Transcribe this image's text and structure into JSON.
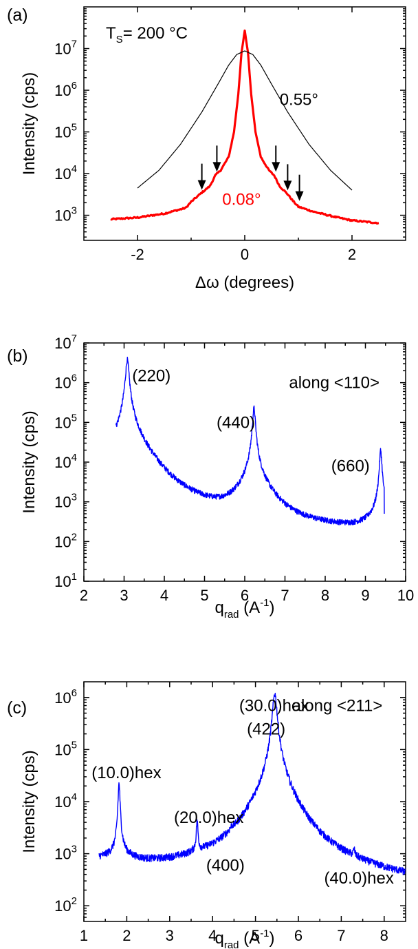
{
  "chart_data": [
    {
      "type": "line",
      "panel_label": "(a)",
      "xlabel": "Δω (degrees)",
      "ylabel": "Intensity (cps)",
      "yscale": "log",
      "xlim": [
        -3,
        3
      ],
      "ylim": [
        250,
        100000000
      ],
      "x_ticks": [
        -2,
        0,
        2
      ],
      "x_tick_labels": [
        "-2",
        "0",
        "2"
      ],
      "y_ticks": [
        1000,
        10000,
        100000,
        1000000,
        10000000
      ],
      "y_tick_labels": [
        {
          "base": "10",
          "exp": "3"
        },
        {
          "base": "10",
          "exp": "4"
        },
        {
          "base": "10",
          "exp": "5"
        },
        {
          "base": "10",
          "exp": "6"
        },
        {
          "base": "10",
          "exp": "7"
        }
      ],
      "series": [
        {
          "color": "#ff0000",
          "width": "thick",
          "x": [
            -2.5,
            -2.0,
            -1.5,
            -1.1,
            -1.0,
            -0.8,
            -0.65,
            -0.55,
            -0.45,
            -0.3,
            -0.2,
            -0.12,
            -0.06,
            0.0,
            0.06,
            0.12,
            0.2,
            0.3,
            0.45,
            0.55,
            0.65,
            0.8,
            0.9,
            1.0,
            1.3,
            1.7,
            2.0,
            2.5
          ],
          "y": [
            800,
            880,
            1100,
            1500,
            2100,
            3500,
            5000,
            9000,
            12000,
            25000,
            100000,
            800000,
            8000000,
            27000000,
            8000000,
            800000,
            100000,
            25000,
            12000,
            9000,
            5000,
            3200,
            2200,
            1600,
            1200,
            900,
            750,
            650
          ]
        },
        {
          "color": "#000000",
          "width": "thin",
          "x": [
            -2.0,
            -1.6,
            -1.2,
            -0.8,
            -0.5,
            -0.3,
            -0.15,
            0.0,
            0.15,
            0.3,
            0.5,
            0.8,
            1.2,
            1.6,
            2.0
          ],
          "y": [
            4500,
            12000,
            50000,
            300000,
            1400000,
            4000000,
            7200000,
            8800000,
            7200000,
            4000000,
            1400000,
            300000,
            50000,
            12000,
            4000
          ]
        }
      ],
      "arrows": [
        {
          "x": -0.8,
          "y": 3500
        },
        {
          "x": -0.52,
          "y": 9500
        },
        {
          "x": 0.58,
          "y": 9500
        },
        {
          "x": 0.8,
          "y": 3400
        },
        {
          "x": 1.02,
          "y": 1900
        }
      ],
      "annotations": [
        {
          "text": "0.55°",
          "x": 0.65,
          "y": 600000,
          "color": "#000000"
        },
        {
          "text": "0.08°",
          "x": -0.42,
          "y": 2400,
          "color": "#ff0000"
        }
      ],
      "ts_label": {
        "prefix": "T",
        "sub": "S",
        "rest": "= 200 °C"
      }
    },
    {
      "type": "line",
      "panel_label": "(b)",
      "xlabel_main": "q",
      "xlabel_sub": "rad",
      "xlabel_unit": " (A",
      "xlabel_sup": "-1",
      "xlabel_close": ")",
      "ylabel": "Intensity (cps)",
      "yscale": "log",
      "xlim": [
        2,
        10
      ],
      "ylim": [
        10,
        10000000
      ],
      "x_ticks": [
        2,
        3,
        4,
        5,
        6,
        7,
        8,
        9,
        10
      ],
      "x_tick_labels": [
        "2",
        "3",
        "4",
        "5",
        "6",
        "7",
        "8",
        "9",
        "10"
      ],
      "y_ticks": [
        10,
        100,
        1000,
        10000,
        100000,
        1000000,
        10000000
      ],
      "y_tick_labels": [
        {
          "base": "10",
          "exp": "1"
        },
        {
          "base": "10",
          "exp": "2"
        },
        {
          "base": "10",
          "exp": "3"
        },
        {
          "base": "10",
          "exp": "4"
        },
        {
          "base": "10",
          "exp": "5"
        },
        {
          "base": "10",
          "exp": "6"
        },
        {
          "base": "10",
          "exp": "7"
        }
      ],
      "background": {
        "x_start": 2.8,
        "x_end": 9.4,
        "level": 85
      },
      "peaks": [
        {
          "x": 3.08,
          "height": 3800000,
          "width": 0.035
        },
        {
          "x": 6.23,
          "height": 230000,
          "width": 0.03
        },
        {
          "x": 9.38,
          "height": 20000,
          "width": 0.025
        }
      ],
      "end_point": {
        "x": 9.47,
        "y": 500
      },
      "series": [
        {
          "color": "#0000ff",
          "width": "thin"
        }
      ],
      "annotations": [
        {
          "text": "(220)",
          "x": 3.2,
          "y": 1500000
        },
        {
          "text": "(440)",
          "x": 5.3,
          "y": 100000
        },
        {
          "text": "(660)",
          "x": 8.15,
          "y": 8000
        },
        {
          "text": "along <110>",
          "x": 7.1,
          "y": 1000000
        }
      ]
    },
    {
      "type": "line",
      "panel_label": "(c)",
      "xlabel_main": "q",
      "xlabel_sub": "rad",
      "xlabel_unit": " (A",
      "xlabel_sup": "-1",
      "xlabel_close": ")",
      "ylabel": "Intensity (cps)",
      "yscale": "log",
      "xlim": [
        1,
        8.5
      ],
      "ylim": [
        50,
        2000000
      ],
      "x_ticks": [
        1,
        2,
        3,
        4,
        5,
        6,
        7,
        8
      ],
      "x_tick_labels": [
        "1",
        "2",
        "3",
        "4",
        "5",
        "6",
        "7",
        "8"
      ],
      "y_ticks": [
        100,
        1000,
        10000,
        100000,
        1000000
      ],
      "y_tick_labels": [
        {
          "base": "10",
          "exp": "2"
        },
        {
          "base": "10",
          "exp": "3"
        },
        {
          "base": "10",
          "exp": "4"
        },
        {
          "base": "10",
          "exp": "5"
        },
        {
          "base": "10",
          "exp": "6"
        }
      ],
      "background": {
        "x_start": 1.35,
        "x_end": 8.5,
        "start_level": 680,
        "end_level": 195
      },
      "peaks": [
        {
          "x": 1.82,
          "height": 22000,
          "width": 0.02
        },
        {
          "x": 3.64,
          "height": 3300,
          "width": 0.018
        },
        {
          "x": 4.45,
          "height": 420,
          "width": 0.03
        },
        {
          "x": 5.45,
          "height": 1200000,
          "width": 0.045
        },
        {
          "x": 7.3,
          "height": 300,
          "width": 0.02
        }
      ],
      "series": [
        {
          "color": "#0000ff",
          "width": "thin"
        }
      ],
      "annotations": [
        {
          "text": "(10.0)hex",
          "x": 1.18,
          "y": 36000
        },
        {
          "text": "(20.0)hex",
          "x": 3.1,
          "y": 5000
        },
        {
          "text": "(400)",
          "x": 3.85,
          "y": 600
        },
        {
          "text": "(30.0)hex",
          "x": 4.62,
          "y": 700000
        },
        {
          "text": "(422)",
          "x": 4.8,
          "y": 250000
        },
        {
          "text": "along <211>",
          "x": 5.85,
          "y": 700000
        },
        {
          "text": "(40.0)hex",
          "x": 6.6,
          "y": 340
        }
      ]
    }
  ]
}
